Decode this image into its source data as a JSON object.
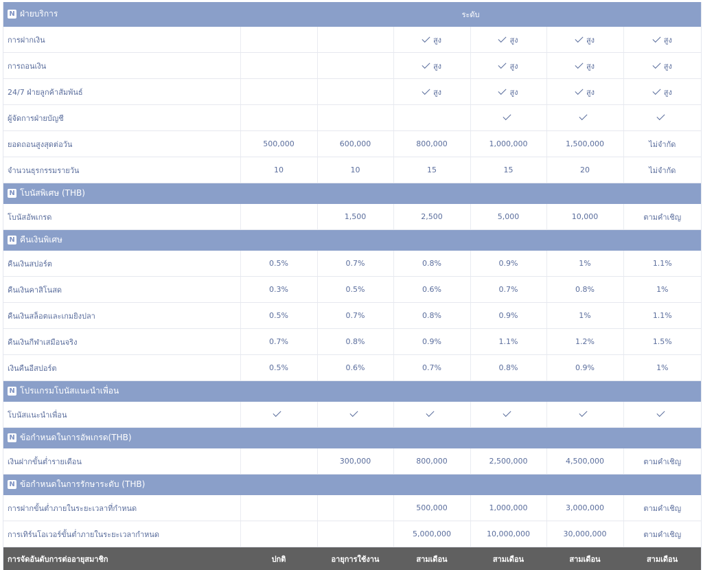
{
  "header": {
    "badge": "N",
    "title": "ฝ่ายบริการ",
    "level_label": "ระดับ"
  },
  "sections": [
    {
      "rows": [
        {
          "label": "การฝากเงิน",
          "cells": [
            {
              "text": ""
            },
            {
              "text": ""
            },
            {
              "text": "สูง",
              "check": true
            },
            {
              "text": "สูง",
              "check": true
            },
            {
              "text": "สูง",
              "check": true
            },
            {
              "text": "สูง",
              "check": true
            }
          ]
        },
        {
          "label": "การถอนเงิน",
          "cells": [
            {
              "text": ""
            },
            {
              "text": ""
            },
            {
              "text": "สูง",
              "check": true
            },
            {
              "text": "สูง",
              "check": true
            },
            {
              "text": "สูง",
              "check": true
            },
            {
              "text": "สูง",
              "check": true
            }
          ]
        },
        {
          "label": "24/7 ฝ่ายลูกค้าสัมพันธ์",
          "cells": [
            {
              "text": ""
            },
            {
              "text": ""
            },
            {
              "text": "สูง",
              "check": true
            },
            {
              "text": "สูง",
              "check": true
            },
            {
              "text": "สูง",
              "check": true
            },
            {
              "text": "สูง",
              "check": true
            }
          ]
        },
        {
          "label": "ผู้จัดการฝ่ายบัญชี",
          "cells": [
            {
              "text": ""
            },
            {
              "text": ""
            },
            {
              "text": ""
            },
            {
              "text": "",
              "check": true
            },
            {
              "text": "",
              "check": true
            },
            {
              "text": "",
              "check": true
            }
          ]
        },
        {
          "label": "ยอดถอนสูงสุดต่อวัน",
          "cells": [
            {
              "text": "500,000"
            },
            {
              "text": "600,000"
            },
            {
              "text": "800,000"
            },
            {
              "text": "1,000,000"
            },
            {
              "text": "1,500,000"
            },
            {
              "text": "ไม่จำกัด"
            }
          ]
        },
        {
          "label": "จำนวนธุรกรรมรายวัน",
          "cells": [
            {
              "text": "10"
            },
            {
              "text": "10"
            },
            {
              "text": "15"
            },
            {
              "text": "15"
            },
            {
              "text": "20"
            },
            {
              "text": "ไม่จำกัด"
            }
          ]
        }
      ]
    },
    {
      "title": "โบนัสพิเศษ (THB)",
      "rows": [
        {
          "label": "โบนัสอัพเกรด",
          "cells": [
            {
              "text": ""
            },
            {
              "text": "1,500"
            },
            {
              "text": "2,500"
            },
            {
              "text": "5,000"
            },
            {
              "text": "10,000"
            },
            {
              "text": "ตามคำเชิญ"
            }
          ]
        }
      ]
    },
    {
      "title": "คืนเงินพิเศษ",
      "rows": [
        {
          "label": "คืนเงินสปอร์ต",
          "cells": [
            {
              "text": "0.5%"
            },
            {
              "text": "0.7%"
            },
            {
              "text": "0.8%"
            },
            {
              "text": "0.9%"
            },
            {
              "text": "1%"
            },
            {
              "text": "1.1%"
            }
          ]
        },
        {
          "label": "คืนเงินคาสิโนสด",
          "cells": [
            {
              "text": "0.3%"
            },
            {
              "text": "0.5%"
            },
            {
              "text": "0.6%"
            },
            {
              "text": "0.7%"
            },
            {
              "text": "0.8%"
            },
            {
              "text": "1%"
            }
          ]
        },
        {
          "label": "คืนเงินสล็อตและเกมยิงปลา",
          "cells": [
            {
              "text": "0.5%"
            },
            {
              "text": "0.7%"
            },
            {
              "text": "0.8%"
            },
            {
              "text": "0.9%"
            },
            {
              "text": "1%"
            },
            {
              "text": "1.1%"
            }
          ]
        },
        {
          "label": "คืนเงินกีฬาเสมือนจริง",
          "cells": [
            {
              "text": "0.7%"
            },
            {
              "text": "0.8%"
            },
            {
              "text": "0.9%"
            },
            {
              "text": "1.1%"
            },
            {
              "text": "1.2%"
            },
            {
              "text": "1.5%"
            }
          ]
        },
        {
          "label": "เงินคืนอีสปอร์ต",
          "cells": [
            {
              "text": "0.5%"
            },
            {
              "text": "0.6%"
            },
            {
              "text": "0.7%"
            },
            {
              "text": "0.8%"
            },
            {
              "text": "0.9%"
            },
            {
              "text": "1%"
            }
          ]
        }
      ]
    },
    {
      "title": "โปรแกรมโบนัสแนะนำเพื่อน",
      "rows": [
        {
          "label": "โบนัสแนะนำเพื่อน",
          "cells": [
            {
              "text": "",
              "check": true
            },
            {
              "text": "",
              "check": true
            },
            {
              "text": "",
              "check": true
            },
            {
              "text": "",
              "check": true
            },
            {
              "text": "",
              "check": true
            },
            {
              "text": "",
              "check": true
            }
          ]
        }
      ]
    },
    {
      "title": "ข้อกำหนดในการอัพเกรด(THB)",
      "rows": [
        {
          "label": "เงินฝากขั้นต่ำรายเดือน",
          "cells": [
            {
              "text": ""
            },
            {
              "text": "300,000"
            },
            {
              "text": "800,000"
            },
            {
              "text": "2,500,000"
            },
            {
              "text": "4,500,000"
            },
            {
              "text": "ตามคำเชิญ"
            }
          ]
        }
      ]
    },
    {
      "title": "ข้อกำหนดในการรักษาระดับ (THB)",
      "rows": [
        {
          "label": "การฝากขั้นต่ำภายในระยะเวลาที่กำหนด",
          "cells": [
            {
              "text": ""
            },
            {
              "text": ""
            },
            {
              "text": "500,000"
            },
            {
              "text": "1,000,000"
            },
            {
              "text": "3,000,000"
            },
            {
              "text": "ตามคำเชิญ"
            }
          ]
        },
        {
          "label": "การเทิร์นโอเวอร์ขั้นต่ำภายในระยะเวลากำหนด",
          "cells": [
            {
              "text": ""
            },
            {
              "text": ""
            },
            {
              "text": "5,000,000"
            },
            {
              "text": "10,000,000"
            },
            {
              "text": "30,000,000"
            },
            {
              "text": "ตามคำเชิญ"
            }
          ]
        }
      ]
    }
  ],
  "footer": {
    "label": "การจัดอันดับการต่ออายุสมาชิก",
    "cells": [
      "ปกติ",
      "อายุการใช้งาน",
      "สามเดือน",
      "สามเดือน",
      "สามเดือน",
      "สามเดือน"
    ]
  }
}
